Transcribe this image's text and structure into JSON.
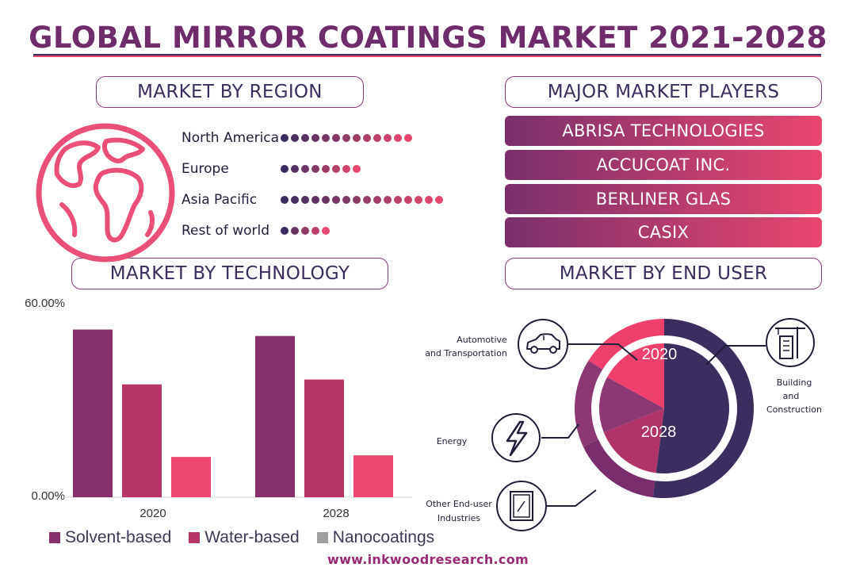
{
  "title": "GLOBAL MIRROR COATINGS MARKET 2021-2028",
  "sections": {
    "region": "MARKET BY REGION",
    "players": "MAJOR MARKET PLAYERS",
    "technology": "MARKET BY TECHNOLOGY",
    "end_user": "MARKET BY END USER"
  },
  "regions": [
    {
      "label": "North America",
      "dots": 13
    },
    {
      "label": "Europe",
      "dots": 8
    },
    {
      "label": "Asia Pacific",
      "dots": 16
    },
    {
      "label": "Rest of world",
      "dots": 5
    }
  ],
  "players": [
    "ABRISA TECHNOLOGIES",
    "ACCUCOAT INC.",
    "BERLINER GLAS",
    "CASIX"
  ],
  "icons": {
    "globe": "globe-icon",
    "car": "car-icon",
    "lightning": "lightning-icon",
    "building": "building-crane-icon",
    "window": "window-icon"
  },
  "colors": {
    "dark_purple": "#3b2d5e",
    "plum": "#8a3067",
    "pink": "#e8486e",
    "purple_mid": "#8d3872",
    "nano_gray": "#a0a0a0"
  },
  "chart_data": [
    {
      "type": "bar",
      "title": "MARKET BY TECHNOLOGY",
      "categories": [
        "2020",
        "2028"
      ],
      "series": [
        {
          "name": "Solvent-based",
          "color": "#85306a",
          "values": [
            52,
            50
          ]
        },
        {
          "name": "Water-based",
          "color": "#b83567",
          "values": [
            35,
            36.5
          ]
        },
        {
          "name": "Nanocoatings",
          "color": "#ee4670",
          "values": [
            12.5,
            13
          ]
        }
      ],
      "yticks": [
        "60.00%",
        "0.00%"
      ],
      "ylim": [
        0,
        60
      ],
      "legend_placement": "bottom",
      "grid": false
    },
    {
      "type": "pie",
      "title": "MARKET BY END USER",
      "rings": [
        {
          "label": "2020",
          "values": [
            {
              "category": "Automotive and Transportation",
              "share": 16
            },
            {
              "category": "Building and Construction",
              "share": 52
            },
            {
              "category": "Energy",
              "share": 16
            },
            {
              "category": "Other End-user Industries",
              "share": 16
            }
          ]
        },
        {
          "label": "2028",
          "values": [
            {
              "category": "Automotive and Transportation",
              "share": 17
            },
            {
              "category": "Building and Construction",
              "share": 52
            },
            {
              "category": "Energy",
              "share": 14
            },
            {
              "category": "Other End-user Industries",
              "share": 17
            }
          ]
        }
      ],
      "callouts": {
        "automotive_1": "Automotive",
        "automotive_2": "and Transportation",
        "building_1": "Building",
        "building_2": "and",
        "building_3": "Construction",
        "energy": "Energy",
        "other_1": "Other End-user",
        "other_2": "Industries"
      }
    }
  ],
  "footer": "www.inkwoodresearch.com"
}
